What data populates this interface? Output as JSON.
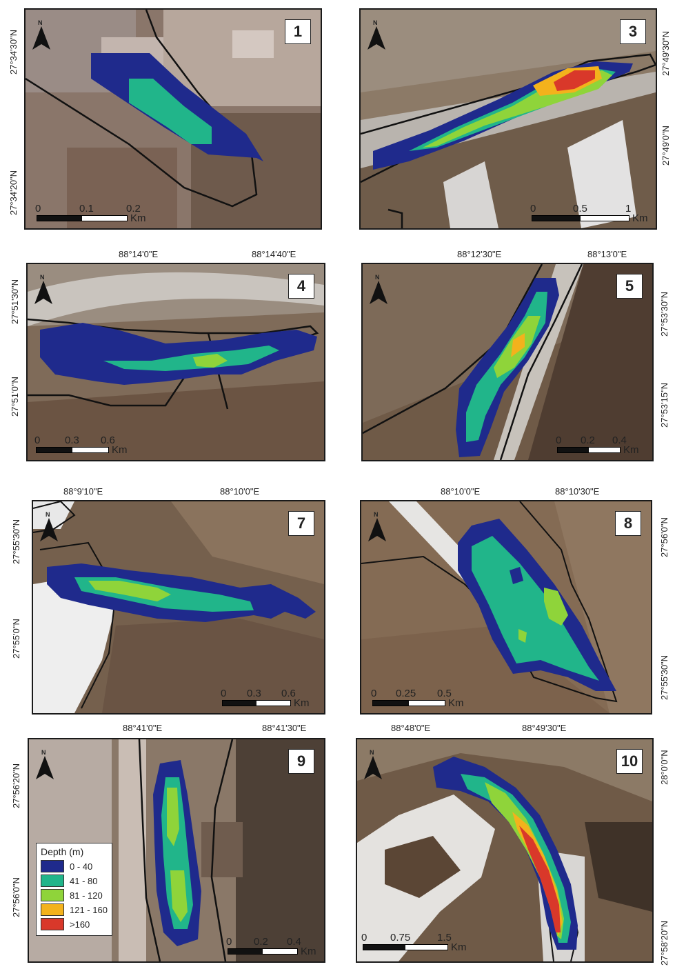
{
  "panels": [
    {
      "id": "p1",
      "number": "1",
      "lat_labels": [
        "27°34'30\"N",
        "27°34'20\"N"
      ],
      "lon_labels": [],
      "scale": {
        "ticks": [
          "0",
          "0.1",
          "0.2"
        ],
        "unit": "Km"
      }
    },
    {
      "id": "p3",
      "number": "3",
      "lat_labels": [
        "27°49'30\"N",
        "27°49'0\"N"
      ],
      "lon_labels": [],
      "scale": {
        "ticks": [
          "0",
          "0.5",
          "1"
        ],
        "unit": "Km"
      }
    },
    {
      "id": "p4",
      "number": "4",
      "lat_labels": [
        "27°51'30\"N",
        "27°51'0\"N"
      ],
      "lon_labels": [
        "88°14'0\"E",
        "88°14'40\"E"
      ],
      "scale": {
        "ticks": [
          "0",
          "0.3",
          "0.6"
        ],
        "unit": "Km"
      }
    },
    {
      "id": "p5",
      "number": "5",
      "lat_labels": [
        "27°53'30\"N",
        "27°53'15\"N"
      ],
      "lon_labels": [
        "88°12'30\"E",
        "88°13'0\"E"
      ],
      "scale": {
        "ticks": [
          "0",
          "0.2",
          "0.4"
        ],
        "unit": "Km"
      }
    },
    {
      "id": "p7",
      "number": "7",
      "lat_labels": [
        "27°55'30\"N",
        "27°55'0\"N"
      ],
      "lon_labels": [
        "88°9'10\"E",
        "88°10'0\"E"
      ],
      "scale": {
        "ticks": [
          "0",
          "0.3",
          "0.6"
        ],
        "unit": "Km"
      }
    },
    {
      "id": "p8",
      "number": "8",
      "lat_labels": [
        "27°56'0\"N",
        "27°55'30\"N"
      ],
      "lon_labels": [
        "88°10'0\"E",
        "88°10'30\"E"
      ],
      "scale": {
        "ticks": [
          "0",
          "0.25",
          "0.5"
        ],
        "unit": "Km"
      }
    },
    {
      "id": "p9",
      "number": "9",
      "lat_labels": [
        "27°56'20\"N",
        "27°56'0\"N"
      ],
      "lon_labels": [
        "88°41'0\"E",
        "88°41'30\"E"
      ],
      "scale": {
        "ticks": [
          "0",
          "0.2",
          "0.4"
        ],
        "unit": "Km"
      }
    },
    {
      "id": "p10",
      "number": "10",
      "lat_labels": [
        "28°0'0\"N",
        "27°58'20\"N"
      ],
      "lon_labels": [
        "88°48'0\"E",
        "88°49'30\"E"
      ],
      "scale": {
        "ticks": [
          "0",
          "0.75",
          "1.5"
        ],
        "unit": "Km"
      }
    }
  ],
  "north_label": "N",
  "legend": {
    "title": "Depth (m)",
    "classes": [
      {
        "label": "0 - 40",
        "color": "#1f2a8c"
      },
      {
        "label": "41 - 80",
        "color": "#21b58a"
      },
      {
        "label": "81 - 120",
        "color": "#8fd43a"
      },
      {
        "label": "121 - 160",
        "color": "#f3b21c"
      },
      {
        "label": ">160",
        "color": "#d9382a"
      }
    ]
  }
}
